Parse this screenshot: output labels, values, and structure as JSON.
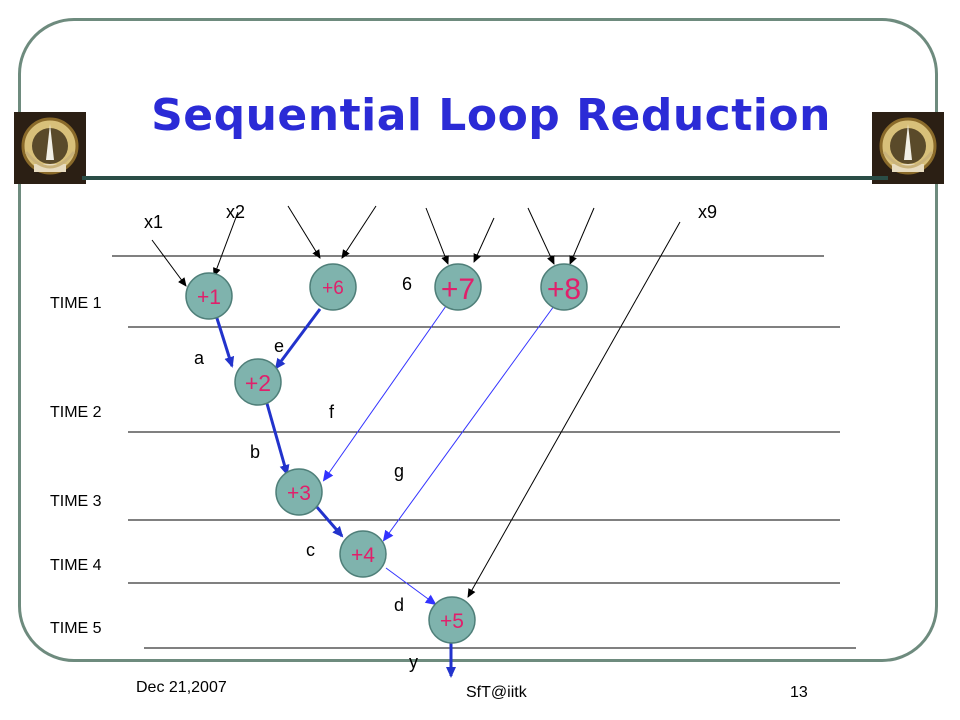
{
  "slide": {
    "title": "Sequential Loop Reduction",
    "footer_date": "Dec 21,2007",
    "footer_center": "SfT@iitk",
    "footer_page": "13"
  },
  "diagram": {
    "time_labels": [
      "TIME 1",
      "TIME 2",
      "TIME 3",
      "TIME 4",
      "TIME 5"
    ],
    "input_labels": {
      "x1": "x1",
      "x2": "x2",
      "x9": "x9"
    },
    "output_label": "y",
    "nodes": {
      "n1": "+1",
      "n6": "+6",
      "n7": "+7",
      "n8": "+8",
      "n2": "+2",
      "n3": "+3",
      "n4": "+4",
      "n5": "+5"
    },
    "edge_labels": {
      "a": "a",
      "b": "b",
      "c": "c",
      "d": "d",
      "e": "e",
      "f": "f",
      "g": "g",
      "six": "6"
    }
  },
  "colors": {
    "node_fill": "#7fb3ad",
    "node_text": "#e0206b",
    "thick_arrow": "#2233cc",
    "thin_arrow": "#3333ff",
    "title": "#2b2bd6",
    "frame": "#6e8b7e"
  }
}
